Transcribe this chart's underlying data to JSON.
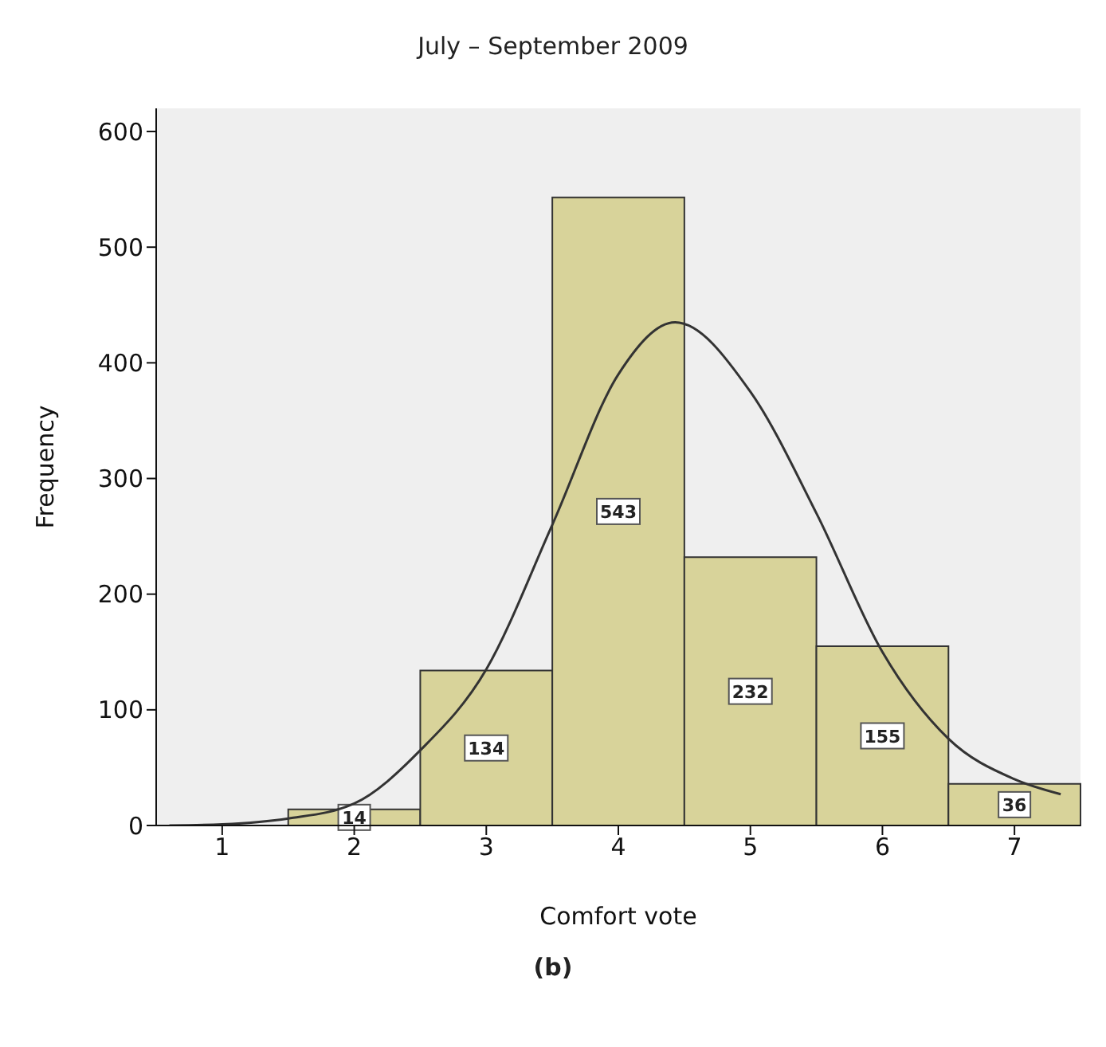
{
  "chart_data": {
    "type": "histogram",
    "title": "July – September 2009",
    "xlabel": "Comfort vote",
    "ylabel": "Frequency",
    "bins": [
      0.5,
      1.5,
      2.5,
      3.5,
      4.5,
      5.5,
      6.5,
      7.5
    ],
    "values": [
      null,
      14,
      134,
      543,
      232,
      155,
      36
    ],
    "value_labels": [
      null,
      "14",
      "134",
      "543",
      "232",
      "155",
      "36"
    ],
    "color": "#d8d39a",
    "xlim": [
      0.5,
      7.5
    ],
    "xticks": [
      1,
      2,
      3,
      4,
      5,
      6,
      7
    ],
    "ylim": [
      0,
      620
    ],
    "yticks": [
      0,
      100,
      200,
      300,
      400,
      500,
      600
    ],
    "series": [
      {
        "type": "line",
        "color": "#333333",
        "x": [
          0.6,
          1,
          1.5,
          2,
          2.5,
          3,
          3.5,
          4,
          4.43,
          5,
          5.5,
          6,
          6.5,
          7,
          7.35
        ],
        "values": [
          0,
          1,
          6,
          19,
          65,
          135,
          260,
          390,
          435,
          375,
          270,
          150,
          75,
          40,
          27
        ]
      }
    ],
    "annotations": [
      "(b)"
    ]
  }
}
